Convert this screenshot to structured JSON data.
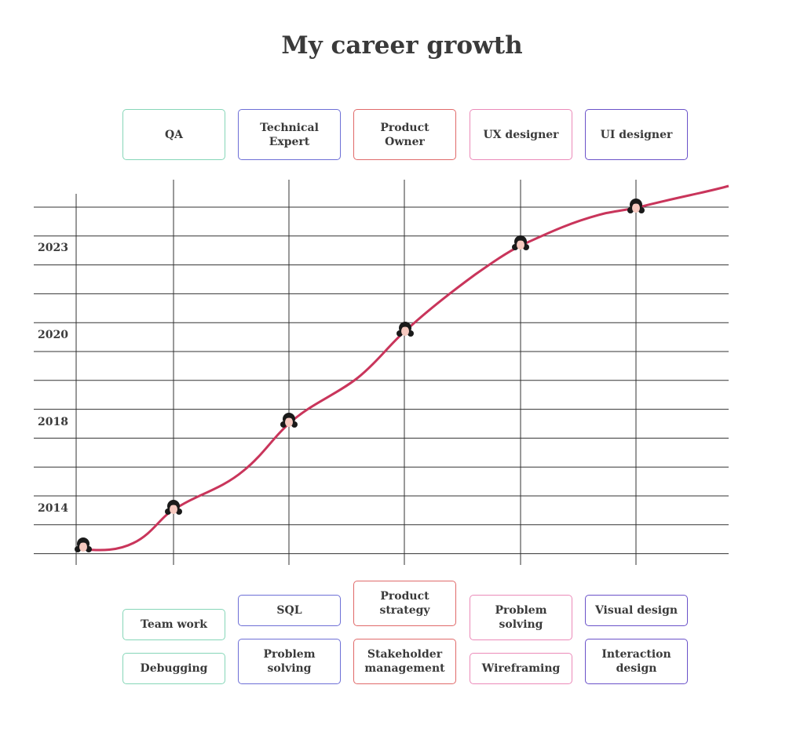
{
  "title": "My career growth",
  "years": [
    "2023",
    "2020",
    "2018",
    "2014"
  ],
  "roles": [
    {
      "name": [
        "QA"
      ],
      "skills": [
        [
          "Team work"
        ],
        [
          "Debugging"
        ]
      ]
    },
    {
      "name": [
        "Technical",
        "Expert"
      ],
      "skills": [
        [
          "SQL"
        ],
        [
          "Problem",
          "solving"
        ]
      ]
    },
    {
      "name": [
        "Product",
        "Owner"
      ],
      "skills": [
        [
          "Product",
          "strategy"
        ],
        [
          "Stakeholder",
          "management"
        ]
      ]
    },
    {
      "name": [
        "UX designer"
      ],
      "skills": [
        [
          "Problem",
          "solving"
        ],
        [
          "Wireframing"
        ]
      ]
    },
    {
      "name": [
        "UI designer"
      ],
      "skills": [
        [
          "Visual design"
        ],
        [
          "Interaction",
          "design"
        ]
      ]
    }
  ]
}
